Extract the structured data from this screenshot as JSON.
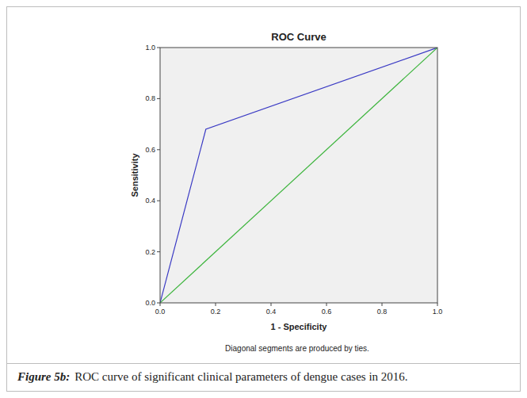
{
  "chart_data": {
    "type": "line",
    "title": "ROC Curve",
    "x_label": "1 - Specificity",
    "y_label": "Sensitivity",
    "annotation": "Diagonal segments are produced by ties.",
    "caption_label": "Figure 5b:",
    "caption": "ROC curve of significant clinical parameters of dengue cases in 2016.",
    "series": [
      {
        "x": [
          0,
          0.165,
          1
        ],
        "values": [
          0,
          0.68,
          1
        ],
        "color": "#3a3ac4",
        "line_style": "solid"
      },
      {
        "x": [
          0,
          1
        ],
        "values": [
          0,
          1
        ],
        "color": "#3cb43c",
        "line_style": "solid"
      }
    ],
    "xlim": [
      0,
      1
    ],
    "ylim": [
      0,
      1
    ],
    "xticks": [
      {
        "value": 0,
        "label": "0.0"
      },
      {
        "value": 0.2,
        "label": "0.2"
      },
      {
        "value": 0.4,
        "label": "0.4"
      },
      {
        "value": 0.6,
        "label": "0.6"
      },
      {
        "value": 0.8,
        "label": "0.8"
      },
      {
        "value": 1,
        "label": "1.0"
      }
    ],
    "yticks": [
      {
        "value": 0,
        "label": "0.0"
      },
      {
        "value": 0.2,
        "label": "0.2"
      },
      {
        "value": 0.4,
        "label": "0.4"
      },
      {
        "value": 0.6,
        "label": "0.6"
      },
      {
        "value": 0.8,
        "label": "0.8"
      },
      {
        "value": 1,
        "label": "1.0"
      }
    ],
    "grid": false
  }
}
